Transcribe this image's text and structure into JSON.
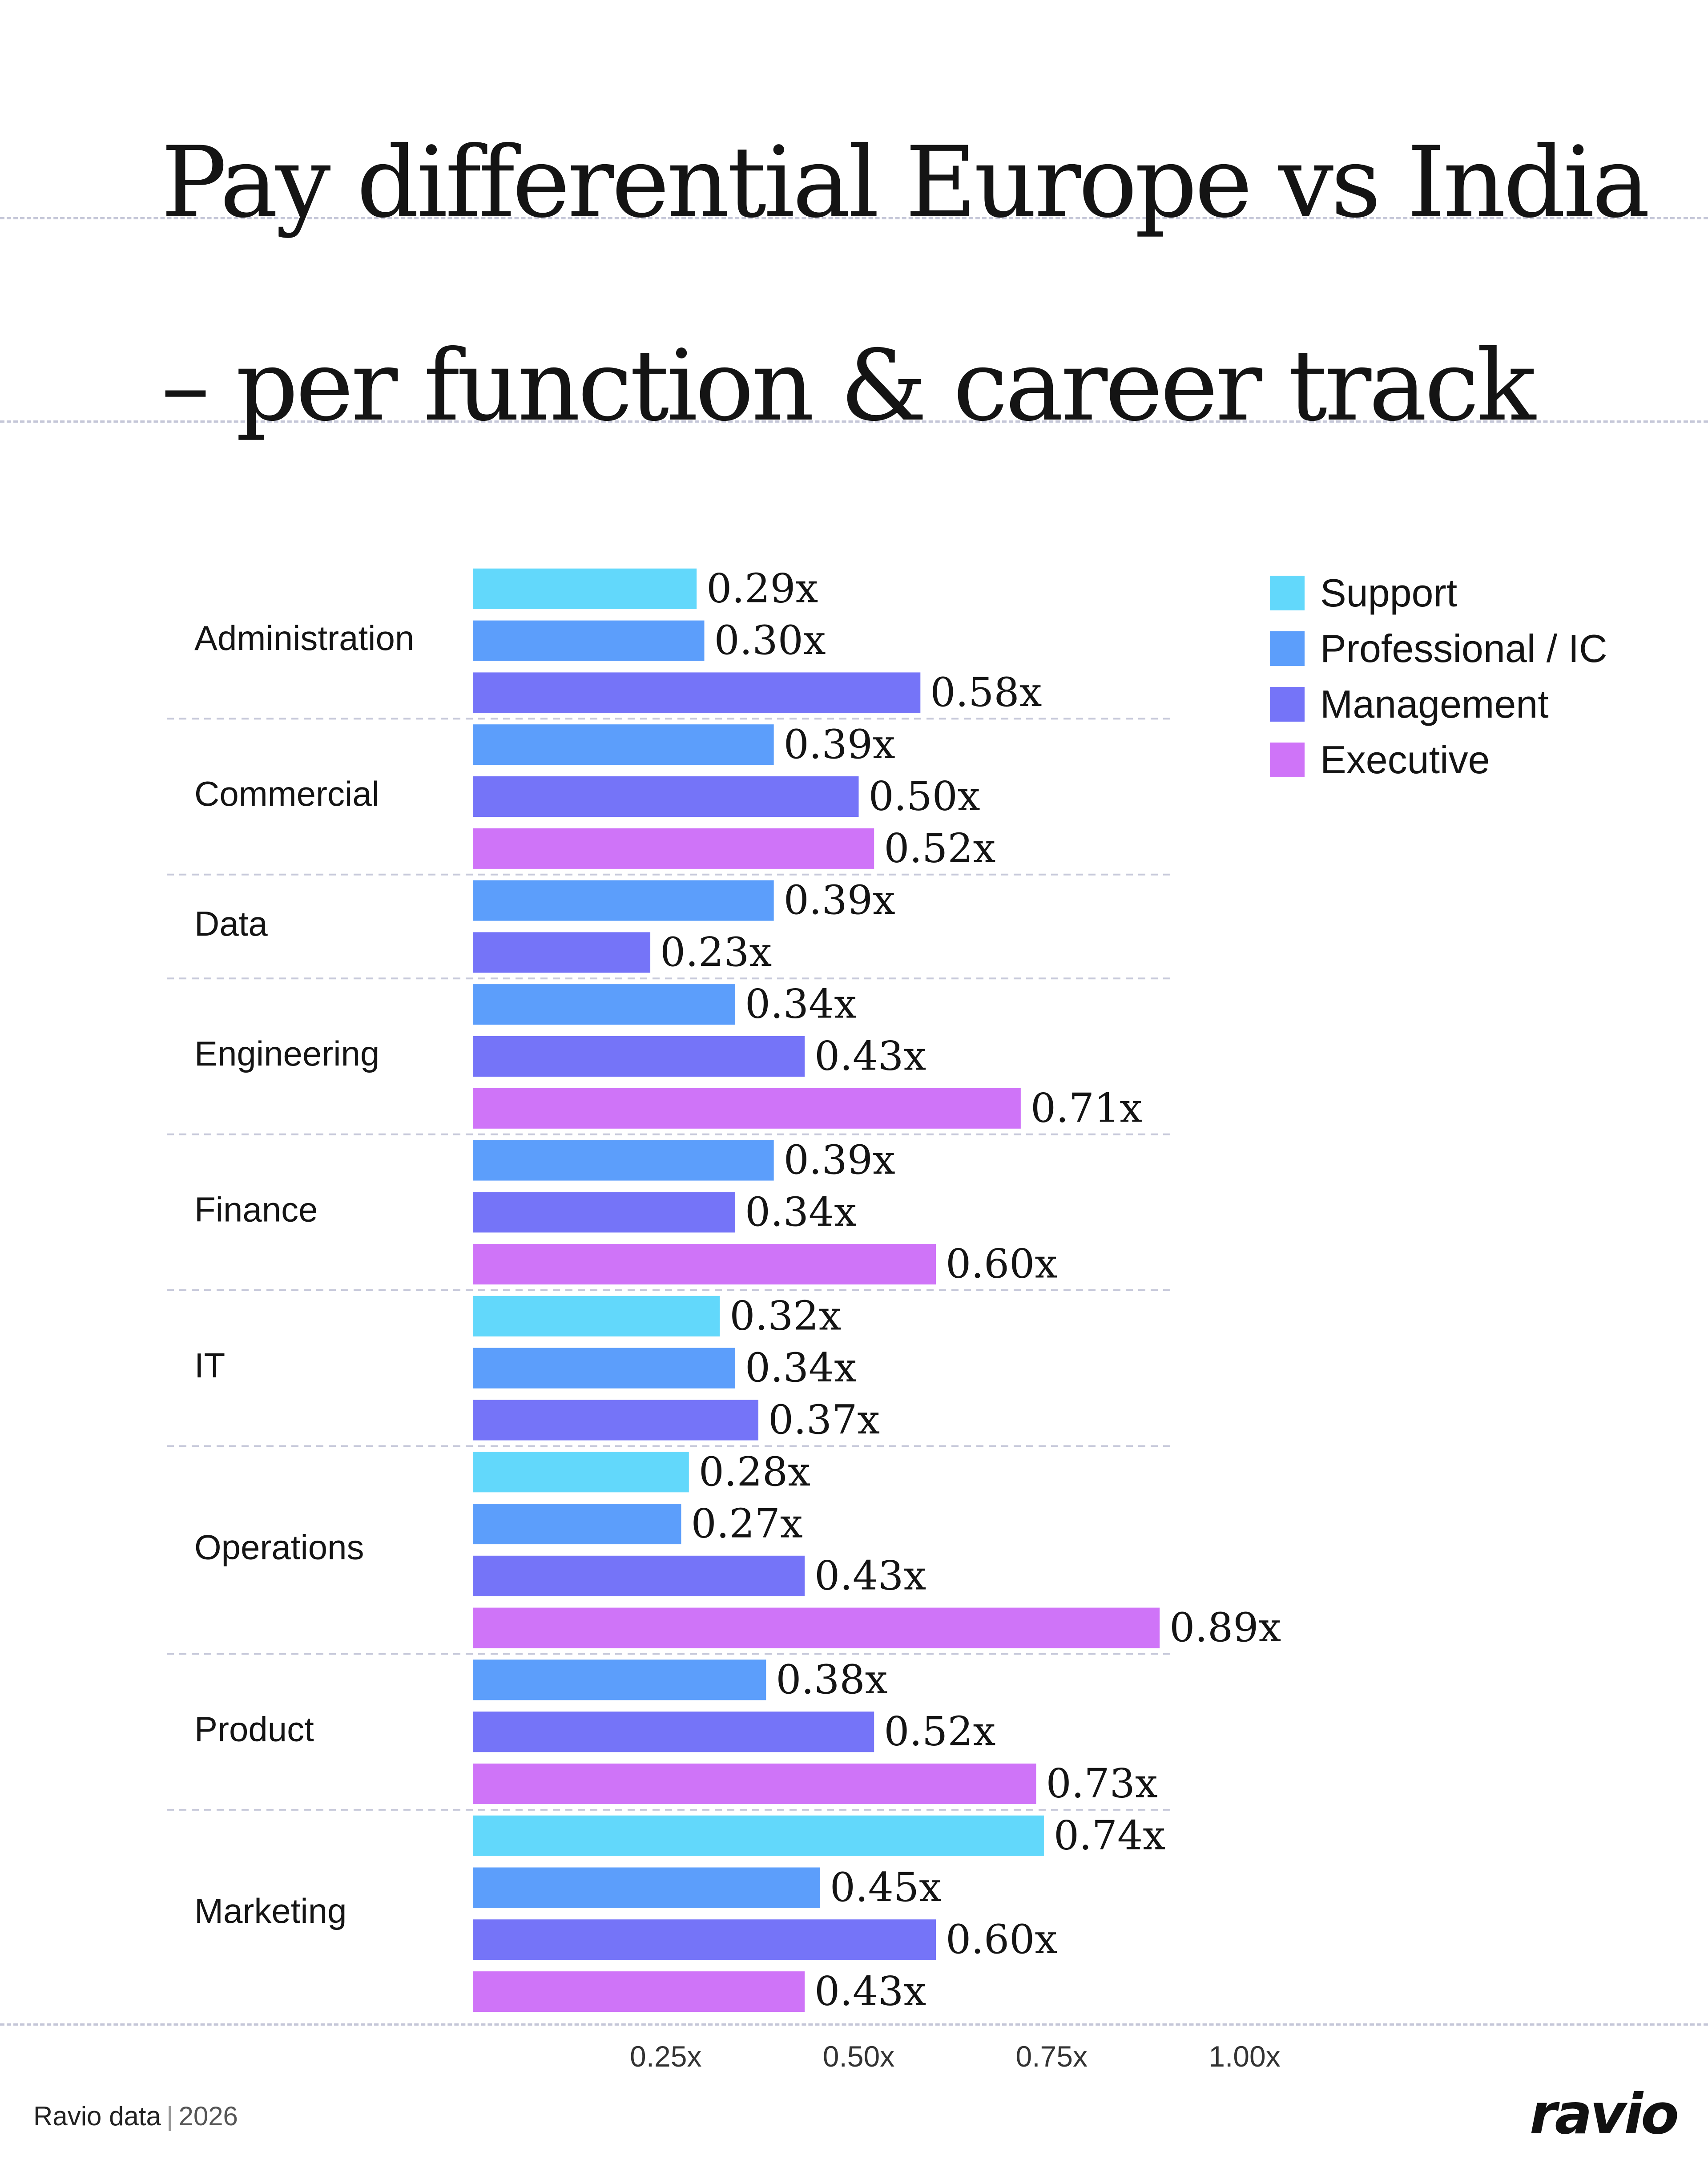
{
  "title": {
    "line1": "Pay differential Europe vs India",
    "line2": "– per function & career track"
  },
  "legend": {
    "items": [
      {
        "key": "support",
        "label": "Support"
      },
      {
        "key": "professional",
        "label": "Professional / IC"
      },
      {
        "key": "management",
        "label": "Management"
      },
      {
        "key": "executive",
        "label": "Executive"
      }
    ]
  },
  "colors": {
    "support": "#62d8fb",
    "professional": "#5c9efb",
    "management": "#7574f8",
    "executive": "#cf74f8"
  },
  "chart_data": {
    "type": "bar",
    "orientation": "horizontal",
    "title": "Pay differential Europe vs India – per function & career track",
    "xlabel": "",
    "ylabel": "",
    "xlim": [
      0,
      1.0
    ],
    "x_ticks": [
      {
        "value": 0.25,
        "label": "0.25x"
      },
      {
        "value": 0.5,
        "label": "0.50x"
      },
      {
        "value": 0.75,
        "label": "0.75x"
      },
      {
        "value": 1.0,
        "label": "1.00x"
      }
    ],
    "legend_position": "top-right",
    "grid": false,
    "series_names": [
      "Support",
      "Professional / IC",
      "Management",
      "Executive"
    ],
    "groups": [
      {
        "category": "Administration",
        "bars": [
          {
            "series": "support",
            "value": 0.29,
            "label": "0.29x"
          },
          {
            "series": "professional",
            "value": 0.3,
            "label": "0.30x"
          },
          {
            "series": "management",
            "value": 0.58,
            "label": "0.58x"
          }
        ]
      },
      {
        "category": "Commercial",
        "bars": [
          {
            "series": "professional",
            "value": 0.39,
            "label": "0.39x"
          },
          {
            "series": "management",
            "value": 0.5,
            "label": "0.50x"
          },
          {
            "series": "executive",
            "value": 0.52,
            "label": "0.52x"
          }
        ]
      },
      {
        "category": "Data",
        "bars": [
          {
            "series": "professional",
            "value": 0.39,
            "label": "0.39x"
          },
          {
            "series": "management",
            "value": 0.23,
            "label": "0.23x"
          }
        ]
      },
      {
        "category": "Engineering",
        "bars": [
          {
            "series": "professional",
            "value": 0.34,
            "label": "0.34x"
          },
          {
            "series": "management",
            "value": 0.43,
            "label": "0.43x"
          },
          {
            "series": "executive",
            "value": 0.71,
            "label": "0.71x"
          }
        ]
      },
      {
        "category": "Finance",
        "bars": [
          {
            "series": "professional",
            "value": 0.39,
            "label": "0.39x"
          },
          {
            "series": "management",
            "value": 0.34,
            "label": "0.34x"
          },
          {
            "series": "executive",
            "value": 0.6,
            "label": "0.60x"
          }
        ]
      },
      {
        "category": "IT",
        "bars": [
          {
            "series": "support",
            "value": 0.32,
            "label": "0.32x"
          },
          {
            "series": "professional",
            "value": 0.34,
            "label": "0.34x"
          },
          {
            "series": "management",
            "value": 0.37,
            "label": "0.37x"
          }
        ]
      },
      {
        "category": "Operations",
        "bars": [
          {
            "series": "support",
            "value": 0.28,
            "label": "0.28x"
          },
          {
            "series": "professional",
            "value": 0.27,
            "label": "0.27x"
          },
          {
            "series": "management",
            "value": 0.43,
            "label": "0.43x"
          },
          {
            "series": "executive",
            "value": 0.89,
            "label": "0.89x"
          }
        ]
      },
      {
        "category": "Product",
        "bars": [
          {
            "series": "professional",
            "value": 0.38,
            "label": "0.38x"
          },
          {
            "series": "management",
            "value": 0.52,
            "label": "0.52x"
          },
          {
            "series": "executive",
            "value": 0.73,
            "label": "0.73x"
          }
        ]
      },
      {
        "category": "Marketing",
        "bars": [
          {
            "series": "support",
            "value": 0.74,
            "label": "0.74x"
          },
          {
            "series": "professional",
            "value": 0.45,
            "label": "0.45x"
          },
          {
            "series": "management",
            "value": 0.6,
            "label": "0.60x"
          },
          {
            "series": "executive",
            "value": 0.43,
            "label": "0.43x"
          }
        ]
      }
    ]
  },
  "footer": {
    "source": "Ravio data",
    "separator": "|",
    "year": "2026",
    "logo": "ravio"
  }
}
